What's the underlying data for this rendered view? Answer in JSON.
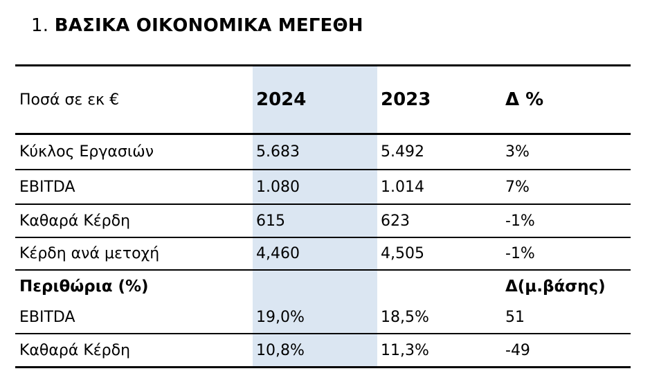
{
  "title": {
    "number": "1.",
    "text": "ΒΑΣΙΚΑ ΟΙΚΟΝΟΜΙΚΑ ΜΕΓΕΘΗ"
  },
  "table": {
    "highlight_color": "#dbe6f2",
    "rule_color": "#000000",
    "columns": [
      "Ποσά σε εκ €",
      "2024",
      "2023",
      "Δ %"
    ],
    "rows": [
      {
        "label": "Κύκλος Εργασιών",
        "v2024": "5.683",
        "v2023": "5.492",
        "delta": "3%",
        "bold": false
      },
      {
        "label": "EBITDA",
        "v2024": "1.080",
        "v2023": "1.014",
        "delta": "7%",
        "bold": false
      },
      {
        "label": "Καθαρά Κέρδη",
        "v2024": "615",
        "v2023": "623",
        "delta": "-1%",
        "bold": false
      },
      {
        "label": "Κέρδη ανά μετοχή",
        "v2024": "4,460",
        "v2023": "4,505",
        "delta": "-1%",
        "bold": false
      },
      {
        "label": "Περιθώρια (%)",
        "v2024": "",
        "v2023": "",
        "delta": "Δ(μ.βάσης)",
        "bold": true
      },
      {
        "label": "EBITDA",
        "v2024": "19,0%",
        "v2023": "18,5%",
        "delta": "51",
        "bold": false
      },
      {
        "label": "Καθαρά Κέρδη",
        "v2024": "10,8%",
        "v2023": "11,3%",
        "delta": "-49",
        "bold": false
      }
    ]
  },
  "chart_data": {
    "type": "table",
    "title": "1. ΒΑΣΙΚΑ ΟΙΚΟΝΟΜΙΚΑ ΜΕΓΕΘΗ",
    "columns": [
      "Ποσά σε εκ €",
      "2024",
      "2023",
      "Δ %"
    ],
    "rows": [
      [
        "Κύκλος Εργασιών",
        "5.683",
        "5.492",
        "3%"
      ],
      [
        "EBITDA",
        "1.080",
        "1.014",
        "7%"
      ],
      [
        "Καθαρά Κέρδη",
        "615",
        "623",
        "-1%"
      ],
      [
        "Κέρδη ανά μετοχή",
        "4,460",
        "4,505",
        "-1%"
      ],
      [
        "Περιθώρια (%)",
        "",
        "",
        "Δ(μ.βάσης)"
      ],
      [
        "EBITDA",
        "19,0%",
        "18,5%",
        "51"
      ],
      [
        "Καθαρά Κέρδη",
        "10,8%",
        "11,3%",
        "-49"
      ]
    ]
  }
}
